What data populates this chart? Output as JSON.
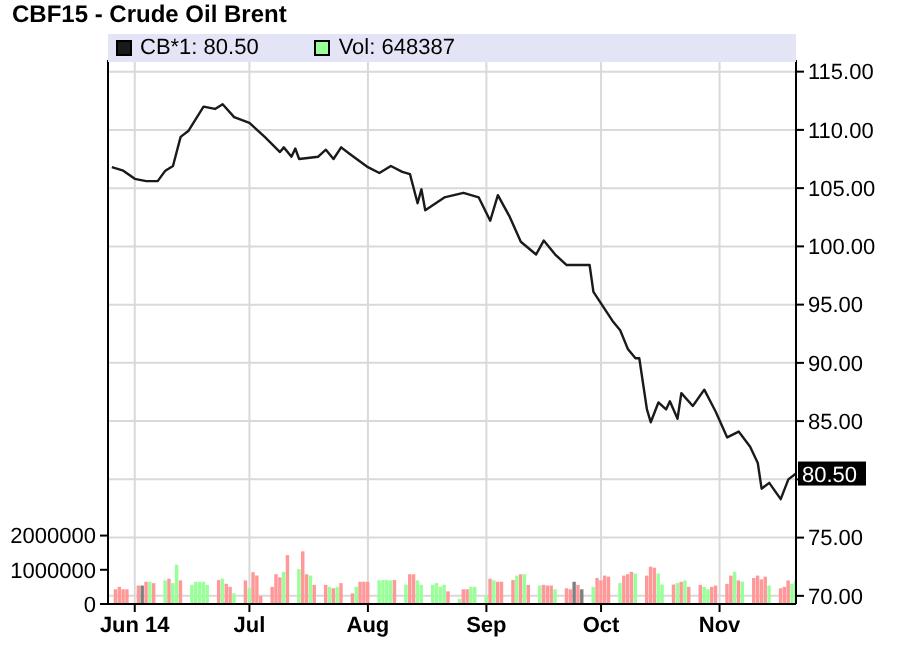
{
  "chart_data": {
    "type": "line",
    "title": "CBF15 - Crude Oil Brent",
    "xlim": [
      "2014-05-25",
      "2014-11-21"
    ],
    "xticks": [
      {
        "value": "2014-06-01",
        "label": "Jun 14"
      },
      {
        "value": "2014-07-01",
        "label": "Jul"
      },
      {
        "value": "2014-08-01",
        "label": "Aug"
      },
      {
        "value": "2014-09-01",
        "label": "Sep"
      },
      {
        "value": "2014-10-01",
        "label": "Oct"
      },
      {
        "value": "2014-11-01",
        "label": "Nov"
      }
    ],
    "ylim": [
      0,
      15900000
    ],
    "yticks": [
      0,
      1000000,
      2000000
    ],
    "y2lim": [
      69.3,
      116
    ],
    "y2ticks": [
      {
        "value": 70,
        "label": "70.00"
      },
      {
        "value": 75,
        "label": "75.00"
      },
      {
        "value": 80,
        "label": null
      },
      {
        "value": 85,
        "label": "85.00"
      },
      {
        "value": 90,
        "label": "90.00"
      },
      {
        "value": 95,
        "label": "95.00"
      },
      {
        "value": 100,
        "label": "100.00"
      },
      {
        "value": 105,
        "label": "105.00"
      },
      {
        "value": 110,
        "label": "110.00"
      },
      {
        "value": 115,
        "label": "115.00"
      }
    ],
    "grid": true,
    "legend": "top left",
    "marker": "none",
    "annotations": [
      "80.50"
    ],
    "series": [
      {
        "name": "CB*1: 80.50",
        "axis": "y2",
        "color": "#1a1a1a",
        "line_style": "solid",
        "x": [
          "2014-05-26",
          "2014-05-29",
          "2014-06-01",
          "2014-06-04",
          "2014-06-07",
          "2014-06-09",
          "2014-06-11",
          "2014-06-13",
          "2014-06-15",
          "2014-06-19",
          "2014-06-22",
          "2014-06-24",
          "2014-06-27",
          "2014-07-01",
          "2014-07-05",
          "2014-07-09",
          "2014-07-10",
          "2014-07-12",
          "2014-07-13",
          "2014-07-14",
          "2014-07-19",
          "2014-07-21",
          "2014-07-23",
          "2014-07-25",
          "2014-07-27",
          "2014-08-01",
          "2014-08-04",
          "2014-08-07",
          "2014-08-10",
          "2014-08-12",
          "2014-08-14",
          "2014-08-15",
          "2014-08-16",
          "2014-08-21",
          "2014-08-26",
          "2014-08-30",
          "2014-09-02",
          "2014-09-04",
          "2014-09-07",
          "2014-09-10",
          "2014-09-14",
          "2014-09-16",
          "2014-09-19",
          "2014-09-22",
          "2014-09-28",
          "2014-09-29",
          "2014-10-04",
          "2014-10-06",
          "2014-10-08",
          "2014-10-10",
          "2014-10-11",
          "2014-10-13",
          "2014-10-14",
          "2014-10-16",
          "2014-10-18",
          "2014-10-19",
          "2014-10-21",
          "2014-10-22",
          "2014-10-25",
          "2014-10-28",
          "2014-10-31",
          "2014-11-03",
          "2014-11-06",
          "2014-11-09",
          "2014-11-11",
          "2014-11-12",
          "2014-11-14",
          "2014-11-17",
          "2014-11-19",
          "2014-11-21"
        ],
        "values": [
          106.8,
          106.5,
          105.8,
          105.6,
          105.6,
          106.5,
          106.9,
          109.4,
          109.9,
          112,
          111.8,
          112.2,
          111.1,
          110.6,
          109.4,
          108.1,
          108.5,
          107.7,
          108.4,
          107.5,
          107.7,
          108.3,
          107.5,
          108.5,
          108,
          106.8,
          106.3,
          106.9,
          106.4,
          106.2,
          103.7,
          104.9,
          103.1,
          104.2,
          104.6,
          104.2,
          102.2,
          104.4,
          102.6,
          100.4,
          99.3,
          100.5,
          99.3,
          98.4,
          98.4,
          96.1,
          93.6,
          92.8,
          91.2,
          90.4,
          90.4,
          86,
          84.9,
          86.6,
          86,
          86.7,
          85.2,
          87.4,
          86.3,
          87.7,
          85.8,
          83.6,
          84.1,
          82.8,
          81.4,
          79.2,
          79.7,
          78.3,
          80,
          80.5
        ]
      },
      {
        "name": "Vol: 648387",
        "type": "bar",
        "axis": "y",
        "color": "#99ff99",
        "x": [
          "2014-05-27",
          "2014-05-28",
          "2014-05-29",
          "2014-05-30",
          "2014-06-02",
          "2014-06-03",
          "2014-06-04",
          "2014-06-05",
          "2014-06-06",
          "2014-06-09",
          "2014-06-10",
          "2014-06-11",
          "2014-06-12",
          "2014-06-13",
          "2014-06-16",
          "2014-06-17",
          "2014-06-18",
          "2014-06-19",
          "2014-06-20",
          "2014-06-23",
          "2014-06-24",
          "2014-06-25",
          "2014-06-26",
          "2014-06-27",
          "2014-06-30",
          "2014-07-01",
          "2014-07-02",
          "2014-07-03",
          "2014-07-04",
          "2014-07-07",
          "2014-07-08",
          "2014-07-09",
          "2014-07-10",
          "2014-07-11",
          "2014-07-14",
          "2014-07-15",
          "2014-07-16",
          "2014-07-17",
          "2014-07-18",
          "2014-07-21",
          "2014-07-22",
          "2014-07-23",
          "2014-07-24",
          "2014-07-25",
          "2014-07-28",
          "2014-07-29",
          "2014-07-30",
          "2014-07-31",
          "2014-08-01",
          "2014-08-04",
          "2014-08-05",
          "2014-08-06",
          "2014-08-07",
          "2014-08-08",
          "2014-08-11",
          "2014-08-12",
          "2014-08-13",
          "2014-08-14",
          "2014-08-15",
          "2014-08-18",
          "2014-08-19",
          "2014-08-20",
          "2014-08-21",
          "2014-08-22",
          "2014-08-25",
          "2014-08-26",
          "2014-08-27",
          "2014-08-28",
          "2014-08-29",
          "2014-09-01",
          "2014-09-02",
          "2014-09-03",
          "2014-09-04",
          "2014-09-05",
          "2014-09-08",
          "2014-09-09",
          "2014-09-10",
          "2014-09-11",
          "2014-09-12",
          "2014-09-15",
          "2014-09-16",
          "2014-09-17",
          "2014-09-18",
          "2014-09-19",
          "2014-09-22",
          "2014-09-23",
          "2014-09-24",
          "2014-09-25",
          "2014-09-26",
          "2014-09-29",
          "2014-09-30",
          "2014-10-01",
          "2014-10-02",
          "2014-10-03",
          "2014-10-06",
          "2014-10-07",
          "2014-10-08",
          "2014-10-09",
          "2014-10-10",
          "2014-10-13",
          "2014-10-14",
          "2014-10-15",
          "2014-10-16",
          "2014-10-17",
          "2014-10-20",
          "2014-10-21",
          "2014-10-22",
          "2014-10-23",
          "2014-10-24",
          "2014-10-27",
          "2014-10-28",
          "2014-10-29",
          "2014-10-30",
          "2014-10-31",
          "2014-11-03",
          "2014-11-04",
          "2014-11-05",
          "2014-11-06",
          "2014-11-07",
          "2014-11-10",
          "2014-11-11",
          "2014-11-12",
          "2014-11-13",
          "2014-11-14",
          "2014-11-17",
          "2014-11-18",
          "2014-11-19",
          "2014-11-20",
          "2014-11-21"
        ],
        "values": [
          430000,
          500000,
          430000,
          430000,
          540000,
          540000,
          650000,
          650000,
          610000,
          690000,
          740000,
          610000,
          1150000,
          690000,
          560000,
          650000,
          650000,
          650000,
          560000,
          700000,
          740000,
          590000,
          500000,
          310000,
          690000,
          460000,
          930000,
          830000,
          240000,
          500000,
          870000,
          780000,
          940000,
          1430000,
          1020000,
          1540000,
          870000,
          830000,
          560000,
          560000,
          500000,
          460000,
          500000,
          610000,
          310000,
          500000,
          650000,
          650000,
          650000,
          690000,
          700000,
          700000,
          690000,
          700000,
          570000,
          870000,
          870000,
          690000,
          560000,
          560000,
          610000,
          500000,
          560000,
          370000,
          150000,
          430000,
          430000,
          500000,
          500000,
          240000,
          740000,
          690000,
          650000,
          650000,
          700000,
          830000,
          870000,
          870000,
          560000,
          540000,
          560000,
          540000,
          540000,
          430000,
          460000,
          430000,
          650000,
          560000,
          430000,
          500000,
          760000,
          690000,
          830000,
          800000,
          610000,
          830000,
          870000,
          940000,
          890000,
          830000,
          1090000,
          1060000,
          890000,
          570000,
          570000,
          610000,
          650000,
          690000,
          500000,
          560000,
          500000,
          430000,
          500000,
          540000,
          590000,
          830000,
          940000,
          690000,
          650000,
          760000,
          830000,
          720000,
          800000,
          540000,
          460000,
          500000,
          690000,
          590000,
          690000
        ],
        "colors": [
          "#ff9999",
          "#ff9999",
          "#ff9999",
          "#ff9999",
          "#ff9999",
          "#808080",
          "#ff9999",
          "#99ff99",
          "#ff9999",
          "#99ff99",
          "#ff9999",
          "#99ff99",
          "#99ff99",
          "#ff9999",
          "#99ff99",
          "#99ff99",
          "#99ff99",
          "#99ff99",
          "#99ff99",
          "#ff9999",
          "#99ff99",
          "#ff9999",
          "#ff9999",
          "#99ff99",
          "#ff9999",
          "#99ff99",
          "#ff9999",
          "#ff9999",
          "#ff9999",
          "#ff9999",
          "#ff9999",
          "#ff9999",
          "#99ff99",
          "#ff9999",
          "#99ff99",
          "#ff9999",
          "#ff9999",
          "#99ff99",
          "#ff9999",
          "#ff9999",
          "#99ff99",
          "#ff9999",
          "#99ff99",
          "#ff9999",
          "#ff9999",
          "#99ff99",
          "#ff9999",
          "#ff9999",
          "#ff9999",
          "#99ff99",
          "#99ff99",
          "#99ff99",
          "#99ff99",
          "#ff9999",
          "#99ff99",
          "#ff9999",
          "#ff9999",
          "#99ff99",
          "#99ff99",
          "#99ff99",
          "#99ff99",
          "#99ff99",
          "#99ff99",
          "#ff9999",
          "#99ff99",
          "#ff9999",
          "#ff9999",
          "#99ff99",
          "#99ff99",
          "#99ff99",
          "#ff9999",
          "#99ff99",
          "#ff9999",
          "#ff9999",
          "#ff9999",
          "#99ff99",
          "#ff9999",
          "#99ff99",
          "#ff9999",
          "#99ff99",
          "#ff9999",
          "#ff9999",
          "#ff9999",
          "#99ff99",
          "#ff9999",
          "#ff9999",
          "#808080",
          "#ff9999",
          "#808080",
          "#99ff99",
          "#ff9999",
          "#ff9999",
          "#ff9999",
          "#ff9999",
          "#99ff99",
          "#ff9999",
          "#ff9999",
          "#ff9999",
          "#99ff99",
          "#ff9999",
          "#ff9999",
          "#ff9999",
          "#99ff99",
          "#99ff99",
          "#ff9999",
          "#99ff99",
          "#ff9999",
          "#99ff99",
          "#ff9999",
          "#ff9999",
          "#99ff99",
          "#99ff99",
          "#ff9999",
          "#ff9999",
          "#ff9999",
          "#ff9999",
          "#99ff99",
          "#ff9999",
          "#99ff99",
          "#ff9999",
          "#ff9999",
          "#ff9999",
          "#ff9999",
          "#99ff99",
          "#ff9999",
          "#ff9999",
          "#ff9999",
          "#99ff99",
          "#99ff99"
        ]
      }
    ]
  }
}
